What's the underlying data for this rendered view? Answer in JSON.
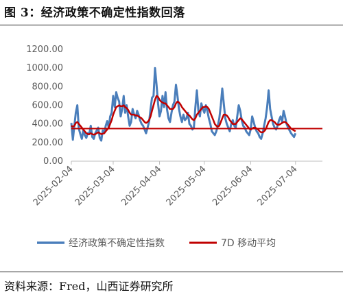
{
  "figure": {
    "title": "图 3：经济政策不确定性指数回落",
    "source": "资料来源：Fred，山西证券研究所"
  },
  "colors": {
    "series_index": "#4a7ebb",
    "series_ma": "#c00000",
    "hline": "#c00000",
    "axis": "#bfbfbf",
    "tick_text": "#595959"
  },
  "chart_data": {
    "type": "line",
    "title": "",
    "xlabel": "",
    "ylabel": "",
    "ylim": [
      0,
      1200
    ],
    "yticks": [
      0,
      200,
      400,
      600,
      800,
      1000,
      1200
    ],
    "ytick_labels": [
      "0.00",
      "200.00",
      "400.00",
      "600.00",
      "800.00",
      "1000.00",
      "1200.00"
    ],
    "xlim": [
      "2025-02-04",
      "2025-07-22"
    ],
    "xticks": [
      "2025-02-04",
      "2025-03-04",
      "2025-04-04",
      "2025-05-04",
      "2025-06-04",
      "2025-07-04"
    ],
    "legend_position": "bottom",
    "horizontal_line": {
      "y": 350,
      "color": "#c00000"
    },
    "series": [
      {
        "name": "经济政策不确定性指数",
        "x_start": "2025-02-04",
        "x_step_days": 1,
        "values": [
          410,
          230,
          380,
          520,
          600,
          350,
          290,
          240,
          330,
          280,
          250,
          300,
          290,
          380,
          260,
          240,
          300,
          330,
          360,
          250,
          220,
          330,
          300,
          380,
          430,
          360,
          480,
          520,
          700,
          580,
          740,
          680,
          640,
          480,
          560,
          700,
          520,
          600,
          480,
          380,
          420,
          560,
          500,
          460,
          540,
          500,
          440,
          400,
          380,
          340,
          300,
          360,
          420,
          560,
          680,
          700,
          1000,
          820,
          620,
          480,
          540,
          700,
          580,
          740,
          560,
          460,
          420,
          520,
          600,
          640,
          820,
          700,
          560,
          480,
          420,
          500,
          440,
          460,
          520,
          400,
          380,
          340,
          360,
          580,
          760,
          540,
          480,
          620,
          560,
          520,
          600,
          540,
          460,
          400,
          320,
          300,
          280,
          320,
          380,
          460,
          600,
          780,
          620,
          460,
          400,
          360,
          320,
          400,
          440,
          380,
          360,
          480,
          600,
          540,
          440,
          380,
          360,
          320,
          300,
          280,
          340,
          480,
          420,
          360,
          320,
          300,
          260,
          240,
          300,
          380,
          460,
          580,
          760,
          560,
          480,
          400,
          360,
          340,
          380,
          440,
          480,
          420,
          540,
          480,
          400,
          360,
          330,
          300,
          280,
          260,
          300
        ]
      },
      {
        "name": "7D 移动平均",
        "x_start": "2025-02-04",
        "x_step_days": 1,
        "values": [
          380,
          370,
          380,
          410,
          420,
          400,
          380,
          360,
          340,
          320,
          300,
          290,
          290,
          300,
          290,
          285,
          290,
          300,
          310,
          300,
          290,
          295,
          300,
          320,
          340,
          360,
          400,
          440,
          500,
          540,
          580,
          590,
          600,
          590,
          590,
          600,
          580,
          570,
          550,
          520,
          500,
          500,
          500,
          490,
          490,
          480,
          470,
          460,
          440,
          420,
          410,
          420,
          440,
          480,
          540,
          600,
          660,
          700,
          690,
          660,
          640,
          630,
          620,
          620,
          600,
          580,
          560,
          560,
          560,
          580,
          620,
          640,
          630,
          610,
          580,
          560,
          540,
          520,
          500,
          490,
          470,
          450,
          440,
          460,
          500,
          520,
          540,
          560,
          580,
          580,
          590,
          580,
          560,
          520,
          480,
          440,
          400,
          380,
          370,
          380,
          420,
          460,
          500,
          500,
          490,
          470,
          440,
          420,
          400,
          400,
          400,
          420,
          440,
          460,
          450,
          430,
          410,
          390,
          370,
          350,
          340,
          350,
          360,
          360,
          350,
          340,
          320,
          310,
          310,
          320,
          340,
          380,
          420,
          440,
          440,
          430,
          420,
          400,
          390,
          390,
          400,
          410,
          420,
          420,
          410,
          390,
          370,
          350,
          340,
          330,
          320
        ]
      }
    ]
  }
}
